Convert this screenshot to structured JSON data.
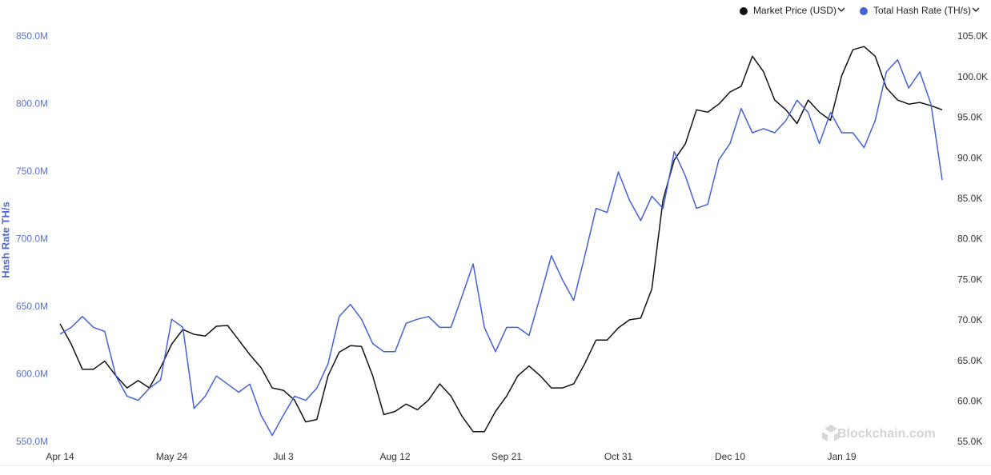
{
  "chart_data": {
    "type": "line",
    "y_label": "Hash Rate TH/s",
    "watermark": "Blockchain.com",
    "legend": "top-right",
    "categories": [
      "Apr 14",
      null,
      null,
      null,
      null,
      null,
      null,
      null,
      null,
      null,
      "May 24",
      null,
      null,
      null,
      null,
      null,
      null,
      null,
      null,
      null,
      "Jul 3",
      null,
      null,
      null,
      null,
      null,
      null,
      null,
      null,
      null,
      "Aug 12",
      null,
      null,
      null,
      null,
      null,
      null,
      null,
      null,
      null,
      "Sep 21",
      null,
      null,
      null,
      null,
      null,
      null,
      null,
      null,
      null,
      "Oct 31",
      null,
      null,
      null,
      null,
      null,
      null,
      null,
      null,
      null,
      "Dec 10",
      null,
      null,
      null,
      null,
      null,
      null,
      null,
      null,
      null,
      "Jan 19",
      null,
      null,
      null,
      null,
      null,
      null,
      null,
      null,
      null
    ],
    "series": [
      {
        "name": "Market Price (USD)",
        "color": "#111111",
        "axis": "y2",
        "values": [
          69600,
          67100,
          64000,
          64000,
          65000,
          63200,
          61700,
          62600,
          61700,
          64200,
          67100,
          68900,
          68300,
          68100,
          69300,
          69400,
          67600,
          65800,
          64200,
          61700,
          61400,
          60200,
          57500,
          57800,
          63200,
          66100,
          66900,
          66800,
          63200,
          58400,
          58800,
          59700,
          59000,
          60200,
          62200,
          60700,
          58200,
          56300,
          56300,
          58800,
          60700,
          63200,
          64400,
          63200,
          61700,
          61700,
          62200,
          64700,
          67600,
          67600,
          69100,
          70100,
          70300,
          73900,
          84900,
          89800,
          91800,
          96000,
          95700,
          96700,
          98200,
          98900,
          102600,
          100700,
          97200,
          96000,
          94300,
          97200,
          95700,
          94700,
          100200,
          103400,
          103800,
          102600,
          98700,
          97200,
          96700,
          96900,
          96500,
          96000
        ]
      },
      {
        "name": "Total Hash Rate (TH/s)",
        "color": "#4461d6",
        "axis": "y",
        "values": [
          630000000,
          635000000,
          643000000,
          635000000,
          632000000,
          599000000,
          584000000,
          581000000,
          590000000,
          596000000,
          641000000,
          635000000,
          575000000,
          584000000,
          599000000,
          593000000,
          587000000,
          593000000,
          570000000,
          555000000,
          570000000,
          584000000,
          581000000,
          590000000,
          608000000,
          643000000,
          652000000,
          641000000,
          623000000,
          617000000,
          617000000,
          638000000,
          641000000,
          643000000,
          635000000,
          635000000,
          658000000,
          682000000,
          635000000,
          617000000,
          635000000,
          635000000,
          629000000,
          658000000,
          688000000,
          670000000,
          655000000,
          688000000,
          723000000,
          720000000,
          750000000,
          729000000,
          714000000,
          732000000,
          723000000,
          765000000,
          747000000,
          723000000,
          726000000,
          759000000,
          771000000,
          797000000,
          779000000,
          782000000,
          779000000,
          788000000,
          803000000,
          794000000,
          771000000,
          794000000,
          779000000,
          779000000,
          768000000,
          788000000,
          824000000,
          833000000,
          812000000,
          824000000,
          800000000,
          744000000
        ]
      }
    ],
    "ylim": [
      550000000,
      850000000
    ],
    "yticks": [
      {
        "value": 550000000,
        "label": "550.0M"
      },
      {
        "value": 600000000,
        "label": "600.0M"
      },
      {
        "value": 650000000,
        "label": "650.0M"
      },
      {
        "value": 700000000,
        "label": "700.0M"
      },
      {
        "value": 750000000,
        "label": "750.0M"
      },
      {
        "value": 800000000,
        "label": "800.0M"
      },
      {
        "value": 850000000,
        "label": "850.0M"
      }
    ],
    "y2lim": [
      55000,
      105000
    ],
    "y2ticks": [
      {
        "value": 55000,
        "label": "55.0K"
      },
      {
        "value": 60000,
        "label": "60.0K"
      },
      {
        "value": 65000,
        "label": "65.0K"
      },
      {
        "value": 70000,
        "label": "70.0K"
      },
      {
        "value": 75000,
        "label": "75.0K"
      },
      {
        "value": 80000,
        "label": "80.0K"
      },
      {
        "value": 85000,
        "label": "85.0K"
      },
      {
        "value": 90000,
        "label": "90.0K"
      },
      {
        "value": 95000,
        "label": "95.0K"
      },
      {
        "value": 100000,
        "label": "100.0K"
      },
      {
        "value": 105000,
        "label": "105.0K"
      }
    ]
  }
}
